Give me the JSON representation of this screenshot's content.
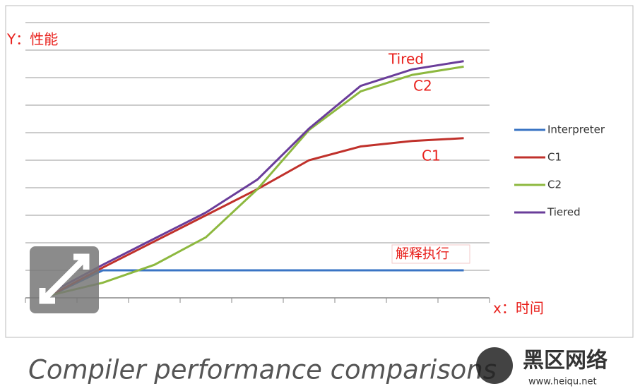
{
  "chart_data": {
    "type": "line",
    "categories": [
      null,
      null,
      null,
      null,
      null,
      null,
      null,
      null,
      null
    ],
    "series": [
      {
        "name": "Interpreter",
        "color": "#3a74c4",
        "values": [
          0.1,
          1,
          1,
          1,
          1,
          1,
          1,
          1,
          1
        ]
      },
      {
        "name": "C1",
        "color": "#c0312b",
        "values": [
          0.1,
          1.1,
          2.05,
          3.0,
          3.95,
          5.0,
          5.5,
          5.7,
          5.8
        ]
      },
      {
        "name": "C2",
        "color": "#8db83f",
        "values": [
          0.1,
          0.55,
          1.2,
          2.2,
          3.95,
          6.1,
          7.5,
          8.1,
          8.4
        ]
      },
      {
        "name": "Tiered",
        "color": "#6a3d9a",
        "values": [
          0.2,
          1.2,
          2.15,
          3.1,
          4.3,
          6.15,
          7.7,
          8.3,
          8.6
        ]
      }
    ],
    "ylim": [
      0,
      10
    ],
    "yticks": [
      0,
      1,
      2,
      3,
      4,
      5,
      6,
      7,
      8,
      9,
      10
    ],
    "grid": true,
    "annotations": [
      "Y：性能",
      "x：时间",
      "Tired",
      "C2",
      "C1",
      "解释执行"
    ],
    "caption": "Compiler performance comparisons",
    "watermark": {
      "title": "黑区网络",
      "url": "www.heiqu.net"
    }
  }
}
